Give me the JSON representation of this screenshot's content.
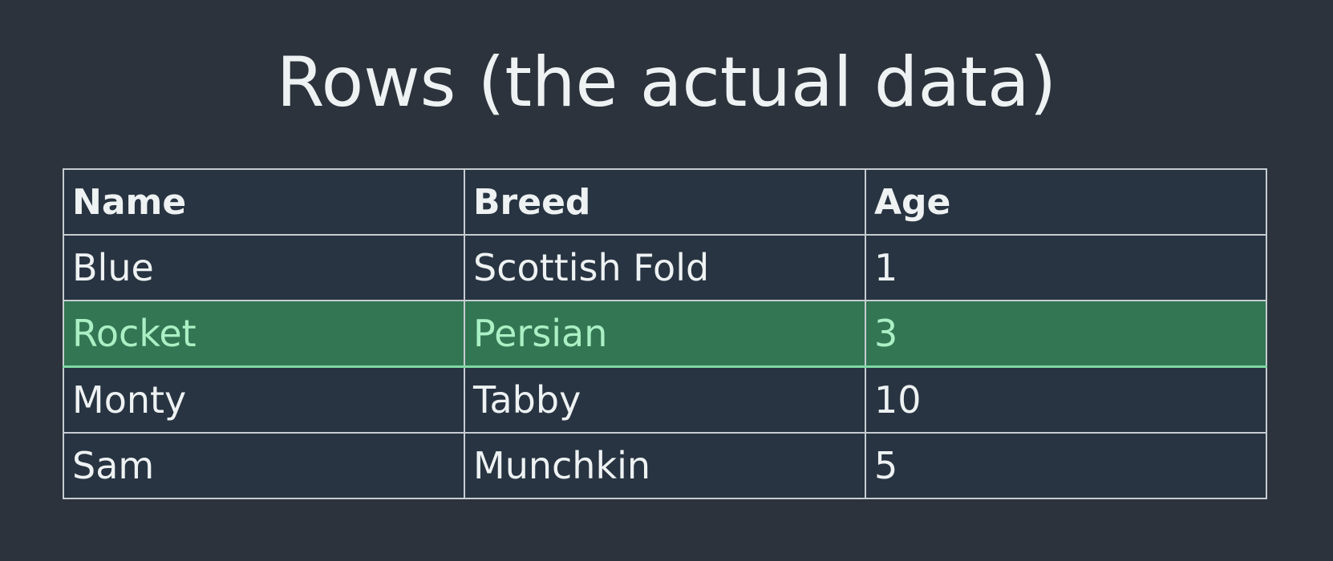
{
  "slide": {
    "title": "Rows (the actual data)"
  },
  "table": {
    "columns": [
      "Name",
      "Breed",
      "Age"
    ],
    "rows": [
      {
        "name": "Blue",
        "breed": "Scottish Fold",
        "age": "1",
        "highlighted": false
      },
      {
        "name": "Rocket",
        "breed": "Persian",
        "age": "3",
        "highlighted": true
      },
      {
        "name": "Monty",
        "breed": "Tabby",
        "age": "10",
        "highlighted": false
      },
      {
        "name": "Sam",
        "breed": "Munchkin",
        "age": "5",
        "highlighted": false
      }
    ]
  },
  "colors": {
    "background": "#2c333c",
    "cell_background": "#283441",
    "highlight_background": "#337654",
    "highlight_text": "#a9f0c4",
    "border": "#c6ccd1",
    "text": "#eef2f3"
  }
}
